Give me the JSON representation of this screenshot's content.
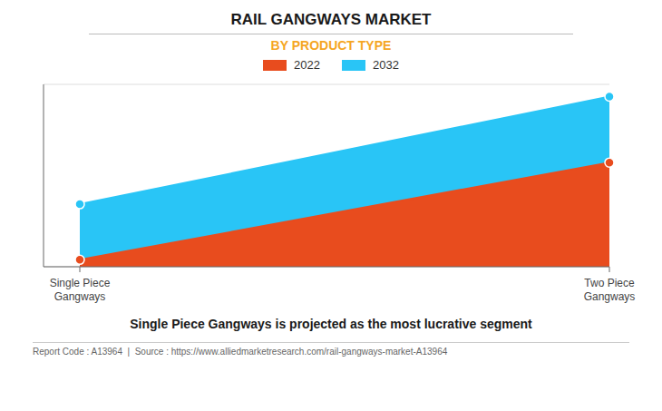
{
  "chart_data": {
    "type": "area",
    "title": "RAIL GANGWAYS MARKET",
    "subtitle": "BY PRODUCT TYPE",
    "annotations": [
      "Single Piece Gangways is projected as the most lucrative segment",
      "Report Code : A13964  |  Source : https://www.alliedmarketresearch.com/rail-gangways-market-A13964"
    ],
    "categories": [
      "Single Piece\nGangways",
      "Two Piece\nGangways"
    ],
    "series": [
      {
        "name": "2022",
        "color": "#E84C1E",
        "values": [
          0.04,
          0.6
        ]
      },
      {
        "name": "2032",
        "color": "#29C5F6",
        "values": [
          0.36,
          0.98
        ]
      }
    ],
    "ylim": [
      0,
      1.05
    ],
    "yticks": [
      0,
      0.21,
      0.42,
      0.63,
      0.84,
      1.05
    ],
    "grid": true,
    "tick_labels": "x",
    "marker": "circle",
    "legend": "top"
  }
}
